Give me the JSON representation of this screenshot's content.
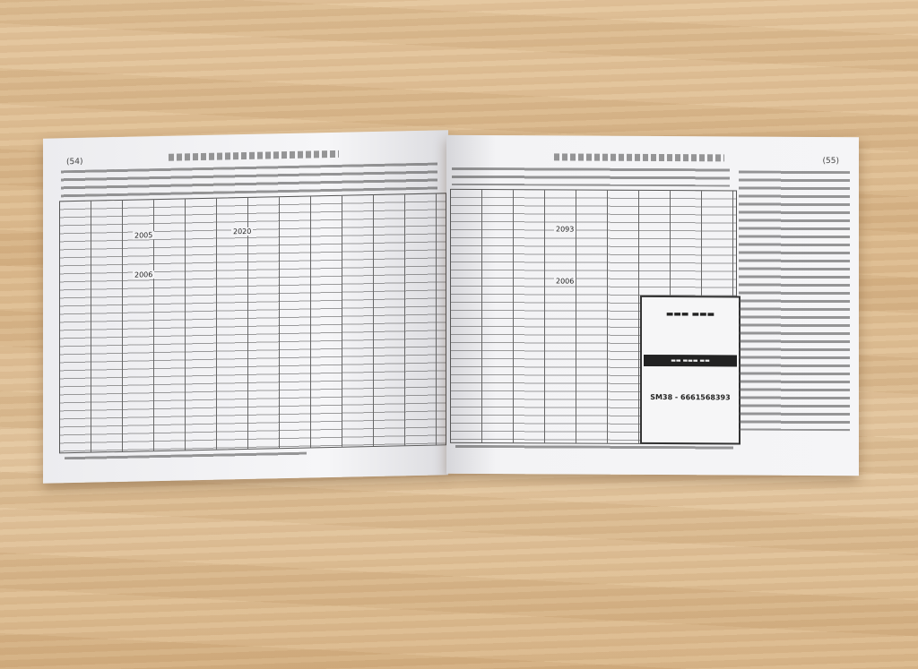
{
  "left_page": {
    "page_number": "(54)",
    "years": [
      "2005",
      "2006",
      "2020"
    ]
  },
  "right_page": {
    "page_number": "(55)",
    "years": [
      "2093",
      "2006"
    ],
    "notice_box": {
      "phone": "SM38 - 6661568393"
    }
  },
  "colors": {
    "paper": "#f4f4f6",
    "ink": "#333333",
    "wood": "#dcb98c"
  }
}
